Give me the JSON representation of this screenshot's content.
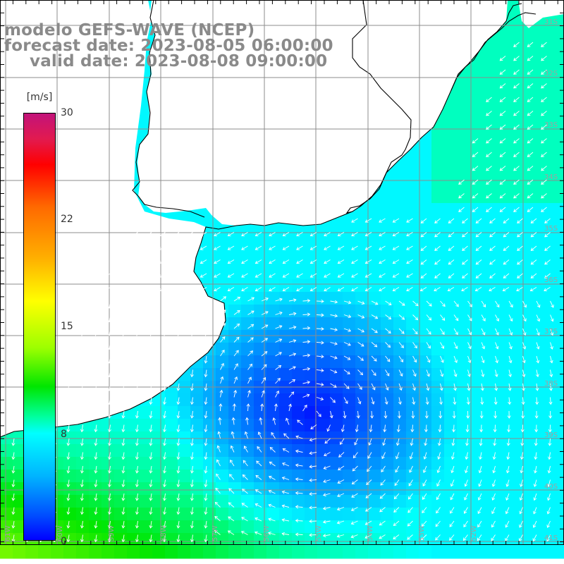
{
  "title": {
    "line1": "modelo GEFS-WAVE (NCEP)",
    "line2": "forecast date: 2023-08-05 06:00:00",
    "line3": "valid date: 2023-08-08 09:00:00"
  },
  "colorbar": {
    "unit": "[m/s]",
    "labels": [
      "30",
      "22",
      "15",
      "8",
      "0"
    ],
    "values": [
      30,
      22,
      15,
      8,
      0
    ],
    "range": [
      0,
      30
    ]
  },
  "lat_labels": [
    "31S",
    "32S",
    "33S",
    "34S",
    "35S",
    "36S",
    "37S",
    "38S",
    "39S",
    "40S",
    "41S"
  ],
  "lon_labels": [
    "61W",
    "60W",
    "59W",
    "58W",
    "57W",
    "56W",
    "55W",
    "54W",
    "53W",
    "52W"
  ],
  "colors": {
    "land": "#ffffff",
    "coast": "#000000",
    "grid": "#8c8c8c",
    "arrows": "#ffffff",
    "title_text": "#8a8a8a"
  }
}
